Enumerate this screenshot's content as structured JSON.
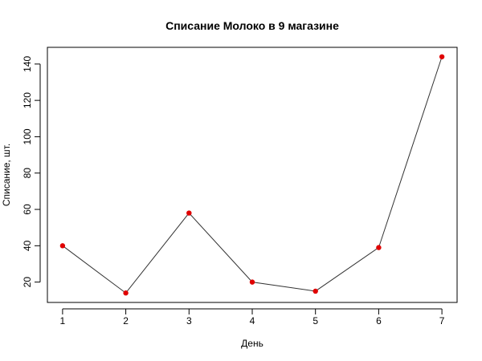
{
  "chart_data": {
    "type": "line",
    "title": "Списание Молоко в 9 магазине",
    "xlabel": "День",
    "ylabel": "Списание, шт.",
    "x": [
      1,
      2,
      3,
      4,
      5,
      6,
      7
    ],
    "y": [
      40,
      14,
      58,
      20,
      15,
      39,
      144
    ],
    "xlim": [
      0.76,
      7.24
    ],
    "ylim": [
      8.8,
      149.2
    ],
    "xticks": [
      1,
      2,
      3,
      4,
      5,
      6,
      7
    ],
    "yticks": [
      20,
      40,
      60,
      80,
      100,
      120,
      140
    ],
    "line_color": "#333333",
    "marker_color": "#e00000",
    "grid": false,
    "legend": "none"
  }
}
